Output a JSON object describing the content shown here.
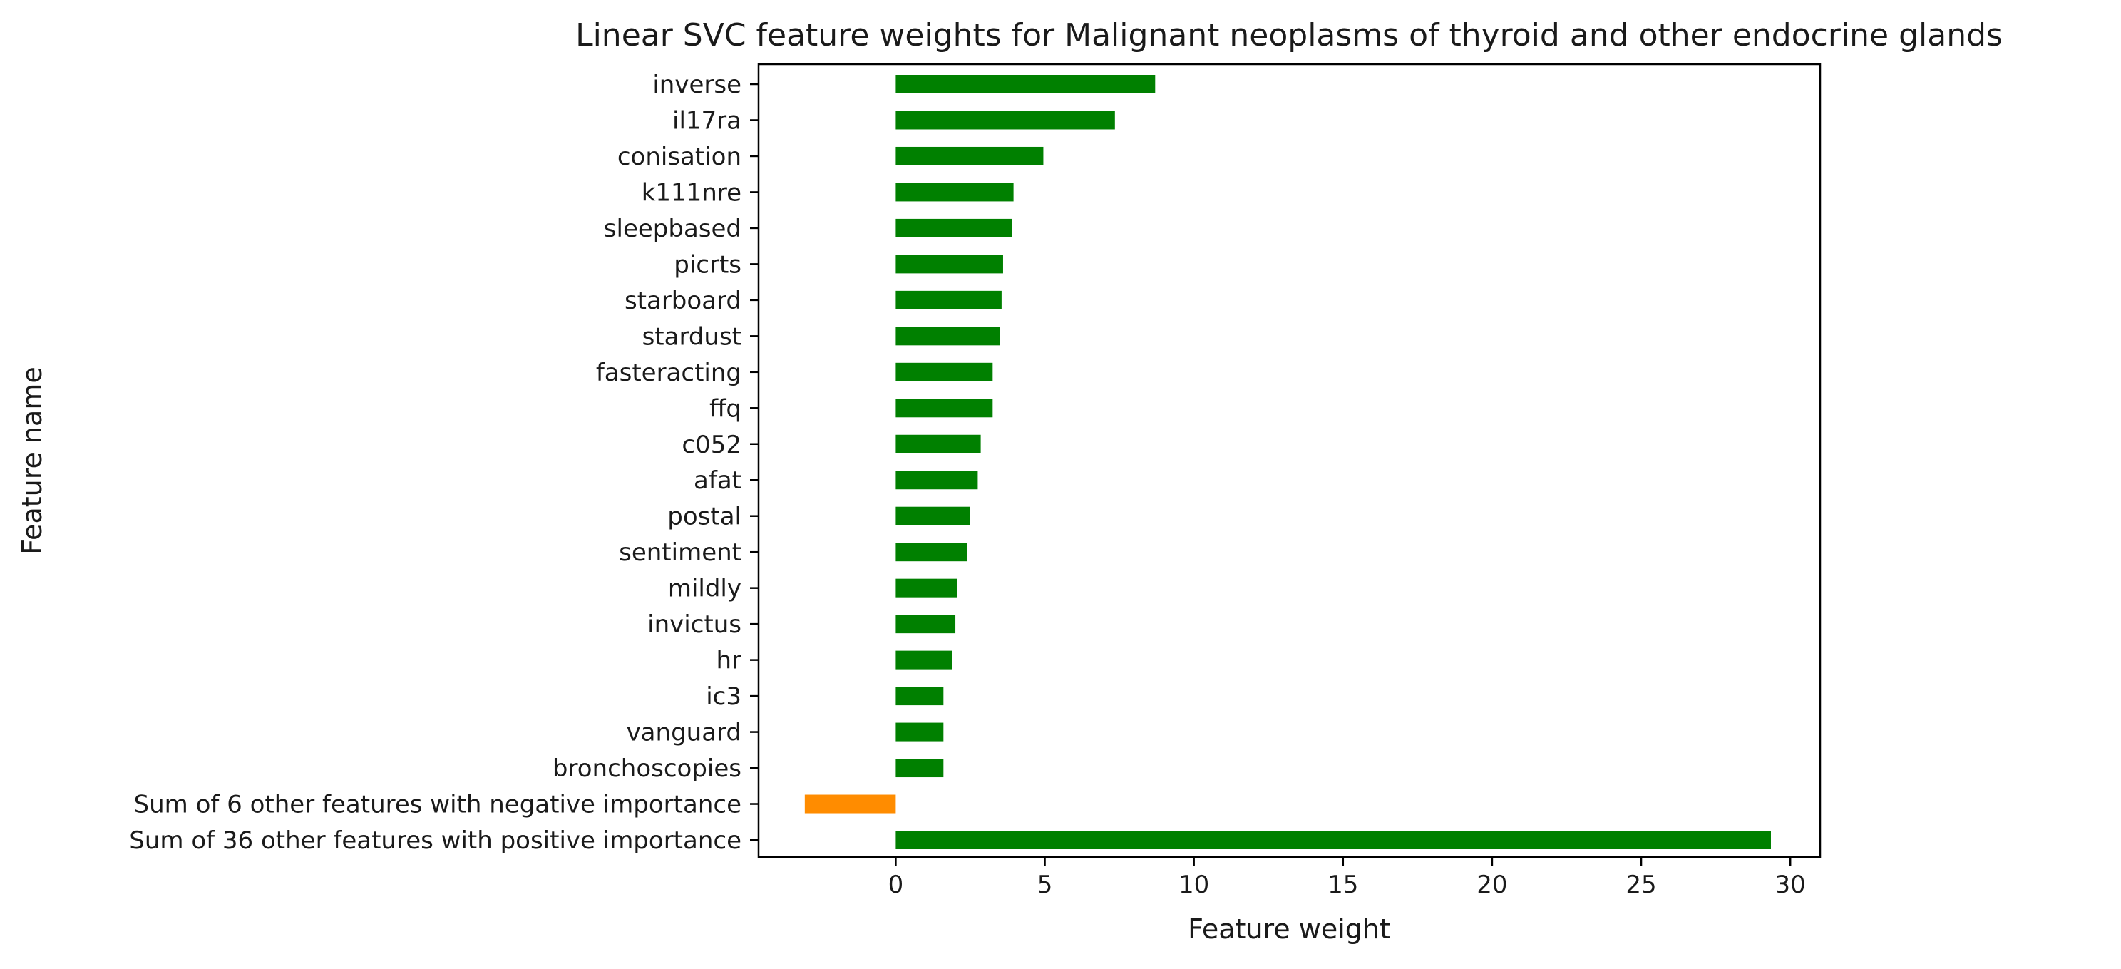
{
  "chart_data": {
    "type": "bar",
    "orientation": "horizontal",
    "title": "Linear SVC feature weights for Malignant neoplasms of thyroid and other endocrine glands",
    "xlabel": "Feature weight",
    "ylabel": "Feature name",
    "xlim": [
      -4.6,
      31.0
    ],
    "xticks": [
      0,
      5,
      10,
      15,
      20,
      25,
      30
    ],
    "xtick_labels": [
      "0",
      "5",
      "10",
      "15",
      "20",
      "25",
      "30"
    ],
    "grid": false,
    "legend": "none",
    "colors": {
      "positive": "#008000",
      "negative": "#ff8c00",
      "axis": "#000000"
    },
    "categories": [
      "inverse",
      "il17ra",
      "conisation",
      "k111nre",
      "sleepbased",
      "picrts",
      "starboard",
      "stardust",
      "fasteracting",
      "ffq",
      "c052",
      "afat",
      "postal",
      "sentiment",
      "mildly",
      "invictus",
      "hr",
      "ic3",
      "vanguard",
      "bronchoscopies",
      "Sum of 6 other features with negative importance",
      "Sum of 36 other features with positive importance"
    ],
    "values": [
      8.7,
      7.35,
      4.95,
      3.95,
      3.9,
      3.6,
      3.55,
      3.5,
      3.25,
      3.25,
      2.85,
      2.75,
      2.5,
      2.4,
      2.05,
      2.0,
      1.9,
      1.6,
      1.6,
      1.6,
      -3.05,
      29.35
    ]
  }
}
